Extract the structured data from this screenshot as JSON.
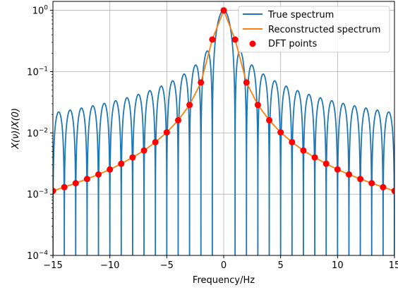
{
  "chart_data": {
    "type": "line",
    "title": "",
    "xlabel": "Frequency/Hz",
    "ylabel_parts": [
      "X(ν)",
      "/",
      "X(0)"
    ],
    "xlim": [
      -15,
      15
    ],
    "ylim": [
      0.0001,
      1.4
    ],
    "yscale": "log",
    "grid": true,
    "legend_position": "upper-right",
    "x_ticks": [
      {
        "value": -15,
        "label": "−15"
      },
      {
        "value": -10,
        "label": "−10"
      },
      {
        "value": -5,
        "label": "−5"
      },
      {
        "value": 0,
        "label": "0"
      },
      {
        "value": 5,
        "label": "5"
      },
      {
        "value": 10,
        "label": "10"
      },
      {
        "value": 15,
        "label": "15"
      }
    ],
    "y_ticks": [
      {
        "value": 0.0001,
        "base": "10",
        "exp": "−4"
      },
      {
        "value": 0.001,
        "base": "10",
        "exp": "−3"
      },
      {
        "value": 0.01,
        "base": "10",
        "exp": "−2"
      },
      {
        "value": 0.1,
        "base": "10",
        "exp": "−1"
      },
      {
        "value": 1,
        "base": "10",
        "exp": "0"
      }
    ],
    "series": [
      {
        "name": "True spectrum",
        "color": "#1f77b4",
        "kind": "line",
        "formula": "|sinc(nu)| (dense sampling)"
      },
      {
        "name": "Reconstructed spectrum",
        "color": "#ff7f0e",
        "kind": "line",
        "x": [
          -15,
          -14,
          -13,
          -12,
          -11,
          -10,
          -9,
          -8,
          -7,
          -6,
          -5,
          -4,
          -3,
          -2,
          -1,
          0,
          1,
          2,
          3,
          4,
          5,
          6,
          7,
          8,
          9,
          10,
          11,
          12,
          13,
          14,
          15
        ],
        "y": [
          0.00113,
          0.0013,
          0.00151,
          0.00177,
          0.0021,
          0.00253,
          0.00314,
          0.00398,
          0.00516,
          0.00706,
          0.0102,
          0.0161,
          0.0286,
          0.0665,
          0.334,
          1,
          0.334,
          0.0665,
          0.0286,
          0.0161,
          0.0102,
          0.00706,
          0.00516,
          0.00398,
          0.00314,
          0.00253,
          0.0021,
          0.00177,
          0.00151,
          0.0013,
          0.00113
        ]
      },
      {
        "name": "DFT points",
        "color": "#ff0000",
        "kind": "scatter",
        "x": [
          -15,
          -14,
          -13,
          -12,
          -11,
          -10,
          -9,
          -8,
          -7,
          -6,
          -5,
          -4,
          -3,
          -2,
          -1,
          0,
          1,
          2,
          3,
          4,
          5,
          6,
          7,
          8,
          9,
          10,
          11,
          12,
          13,
          14,
          15
        ],
        "y": [
          0.00113,
          0.0013,
          0.00151,
          0.00177,
          0.0021,
          0.00253,
          0.00314,
          0.00398,
          0.00516,
          0.00706,
          0.0102,
          0.0161,
          0.0286,
          0.0665,
          0.334,
          1,
          0.334,
          0.0665,
          0.0286,
          0.0161,
          0.0102,
          0.00706,
          0.00516,
          0.00398,
          0.00314,
          0.00253,
          0.0021,
          0.00177,
          0.00151,
          0.0013,
          0.00113
        ]
      }
    ]
  }
}
